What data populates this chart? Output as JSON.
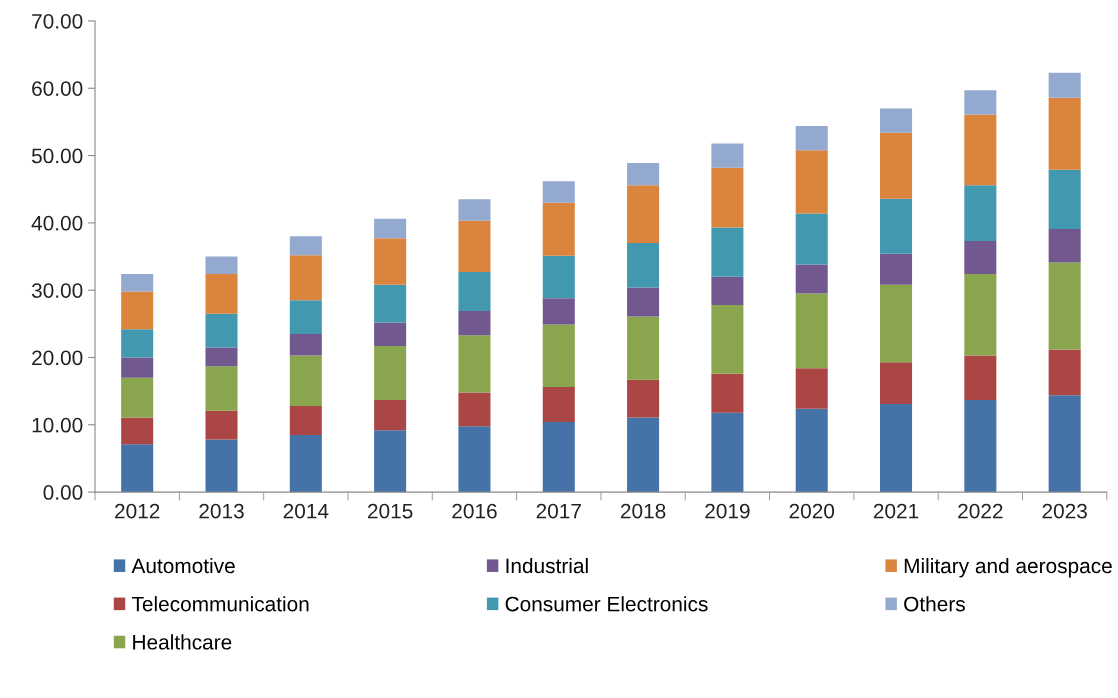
{
  "chart_data": {
    "type": "bar",
    "stacked": true,
    "categories": [
      "2012",
      "2013",
      "2014",
      "2015",
      "2016",
      "2017",
      "2018",
      "2019",
      "2020",
      "2021",
      "2022",
      "2023"
    ],
    "series": [
      {
        "name": "Automotive",
        "color": "#4572a7",
        "values": [
          7.1,
          7.8,
          8.5,
          9.2,
          9.8,
          10.4,
          11.1,
          11.8,
          12.4,
          13.1,
          13.7,
          14.4
        ]
      },
      {
        "name": "Telecommunication",
        "color": "#aa4643",
        "values": [
          4.0,
          4.3,
          4.3,
          4.5,
          5.0,
          5.2,
          5.6,
          5.8,
          6.0,
          6.2,
          6.6,
          6.8
        ]
      },
      {
        "name": "Healthcare",
        "color": "#89a54e",
        "values": [
          5.9,
          6.6,
          7.5,
          8.0,
          8.5,
          9.3,
          9.4,
          10.2,
          11.1,
          11.5,
          12.1,
          12.9
        ]
      },
      {
        "name": "Industrial",
        "color": "#71588f",
        "values": [
          3.0,
          2.8,
          3.2,
          3.5,
          3.6,
          3.9,
          4.3,
          4.2,
          4.3,
          4.6,
          4.9,
          5.0
        ]
      },
      {
        "name": "Consumer Electronics",
        "color": "#4198af",
        "values": [
          4.2,
          5.0,
          5.0,
          5.6,
          5.8,
          6.3,
          6.6,
          7.3,
          7.6,
          8.2,
          8.3,
          8.8
        ]
      },
      {
        "name": "Military and aerospace",
        "color": "#db843d",
        "values": [
          5.6,
          5.9,
          6.7,
          6.9,
          7.6,
          7.9,
          8.6,
          8.9,
          9.4,
          9.8,
          10.5,
          10.7
        ]
      },
      {
        "name": "Others",
        "color": "#93a9cf",
        "values": [
          2.6,
          2.6,
          2.8,
          2.9,
          3.2,
          3.2,
          3.3,
          3.6,
          3.6,
          3.6,
          3.6,
          3.7
        ]
      }
    ],
    "ylim": [
      0,
      70
    ],
    "yticks": [
      {
        "value": 0,
        "label": "0.00"
      },
      {
        "value": 10,
        "label": "10.00"
      },
      {
        "value": 20,
        "label": "20.00"
      },
      {
        "value": 30,
        "label": "30.00"
      },
      {
        "value": 40,
        "label": "40.00"
      },
      {
        "value": 50,
        "label": "50.00"
      },
      {
        "value": 60,
        "label": "60.00"
      },
      {
        "value": 70,
        "label": "70.00"
      }
    ],
    "grid": false,
    "legend": "bottom"
  }
}
